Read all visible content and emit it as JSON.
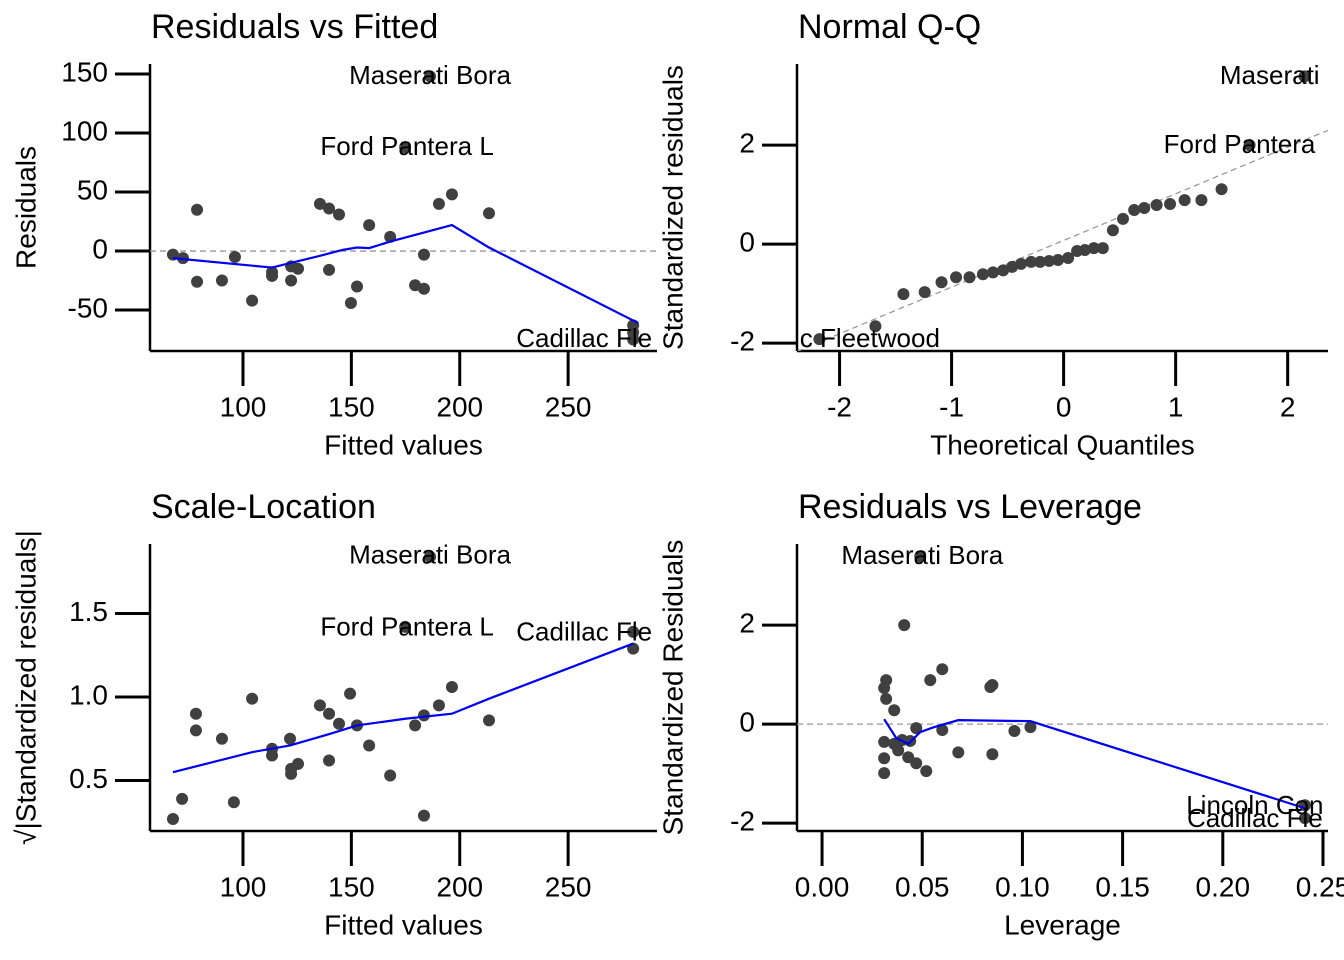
{
  "chart_data": [
    {
      "type": "scatter",
      "title": "Residuals vs Fitted",
      "xlabel": "Fitted values",
      "ylabel": "Residuals",
      "xlim": [
        57.1,
        291
      ],
      "ylim": [
        -84.7,
        158.5
      ],
      "xticks": [
        100,
        150,
        200,
        250
      ],
      "yticks": [
        -50,
        0,
        50,
        100,
        150
      ],
      "hline": 0,
      "point_color": "#404040",
      "smooth_color": "#0000ee",
      "points": {
        "x": [
          67.7,
          72.3,
          78.8,
          78.8,
          90.3,
          96.3,
          104.2,
          113.4,
          113.4,
          122.2,
          122.2,
          125.4,
          135.5,
          139.7,
          139.7,
          144.3,
          149.8,
          152.6,
          158.2,
          167.9,
          179.4,
          183.5,
          183.5,
          186.3,
          174.8,
          190.4,
          196.4,
          213.5,
          280,
          280,
          280
        ],
        "y": [
          -3,
          -6,
          35,
          -26,
          -25,
          -5,
          -42,
          -18,
          -21,
          -13,
          -25,
          -15,
          40,
          36,
          -16,
          31,
          -44,
          -30,
          22,
          12,
          -29,
          -32,
          -3,
          148,
          88,
          40,
          48,
          32,
          -63,
          -75,
          -69
        ]
      },
      "smooth": {
        "x": [
          67.7,
          113.4,
          135.5,
          146.1,
          152.6,
          158.2,
          167.9,
          196.4,
          213.5,
          282.3
        ],
        "y": [
          -6,
          -14,
          -4,
          1,
          3,
          2.5,
          8,
          22,
          3,
          -61
        ]
      },
      "annotations": [
        {
          "text": "Maserati Bora",
          "x": 186.3,
          "y": 147.5
        },
        {
          "text": "Ford Pantera L",
          "x": 175.7,
          "y": 87.3
        },
        {
          "text": "Cadillac Fle",
          "x": 257.4,
          "y": -75.4
        }
      ]
    },
    {
      "type": "scatter",
      "title": "Normal Q-Q",
      "xlabel": "Theoretical Quantiles",
      "ylabel": "Standardized residuals",
      "xlim": [
        -2.38,
        2.36
      ],
      "ylim": [
        -2.16,
        3.64
      ],
      "xticks": [
        -2,
        -1,
        0,
        1,
        2
      ],
      "yticks": [
        -2,
        0,
        2
      ],
      "ref_line": {
        "x": [
          -2.38,
          2.36
        ],
        "y": [
          -2.17,
          2.3
        ]
      },
      "point_color": "#404040",
      "points": {
        "x": [
          -2.18,
          -1.68,
          -1.43,
          -1.24,
          -1.09,
          -0.96,
          -0.84,
          -0.72,
          -0.63,
          -0.54,
          -0.46,
          -0.38,
          -0.29,
          -0.21,
          -0.13,
          -0.05,
          0.04,
          0.12,
          0.19,
          0.27,
          0.35,
          0.44,
          0.53,
          0.63,
          0.72,
          0.83,
          0.95,
          1.08,
          1.23,
          1.41,
          1.66,
          2.15
        ],
        "y": [
          -1.92,
          -1.66,
          -1.01,
          -0.97,
          -0.77,
          -0.67,
          -0.67,
          -0.61,
          -0.57,
          -0.53,
          -0.46,
          -0.4,
          -0.36,
          -0.36,
          -0.34,
          -0.32,
          -0.28,
          -0.14,
          -0.12,
          -0.08,
          -0.08,
          0.28,
          0.51,
          0.69,
          0.73,
          0.79,
          0.81,
          0.89,
          0.89,
          1.11,
          2.0,
          3.39
        ]
      },
      "annotations": [
        {
          "text": "Maserati",
          "x": 1.84,
          "y": 3.37
        },
        {
          "text": "Ford Pantera",
          "x": 1.57,
          "y": 1.98
        },
        {
          "text": "c Fleetwood",
          "x": -1.73,
          "y": -1.94
        }
      ]
    },
    {
      "type": "scatter",
      "title": "Scale-Location",
      "xlabel": "Fitted values",
      "ylabel": "√|Standardized residuals|",
      "xlim": [
        57.1,
        291
      ],
      "ylim": [
        0.198,
        1.916
      ],
      "xticks": [
        100,
        150,
        200,
        250
      ],
      "yticks": [
        0.5,
        {
          "value": 1,
          "label": "1.0"
        },
        1.5
      ],
      "point_color": "#404040",
      "smooth_color": "#0000ee",
      "points": {
        "x": [
          67.7,
          71.9,
          78.3,
          78.3,
          90.3,
          95.8,
          104.2,
          113.4,
          113.4,
          121.7,
          122.2,
          122.2,
          125.4,
          135.5,
          139.7,
          139.7,
          144.3,
          149.4,
          152.6,
          158.2,
          167.9,
          179.4,
          183.5,
          183.5,
          186.3,
          174.8,
          190.4,
          196.4,
          213.5,
          280,
          280
        ],
        "y": [
          0.27,
          0.39,
          0.9,
          0.8,
          0.75,
          0.37,
          0.99,
          0.69,
          0.65,
          0.75,
          0.57,
          0.54,
          0.6,
          0.95,
          0.9,
          0.62,
          0.84,
          1.02,
          0.83,
          0.71,
          0.53,
          0.83,
          0.89,
          0.29,
          1.84,
          1.42,
          0.95,
          1.06,
          0.86,
          1.39,
          1.29
        ]
      },
      "smooth": {
        "x": [
          67.7,
          104.2,
          121.7,
          140.2,
          152.6,
          174.8,
          196.4,
          213.5,
          280
        ],
        "y": [
          0.55,
          0.67,
          0.71,
          0.78,
          0.83,
          0.87,
          0.9,
          0.99,
          1.32
        ]
      },
      "annotations": [
        {
          "text": "Maserati Bora",
          "x": 186.3,
          "y": 1.84
        },
        {
          "text": "Ford Pantera L",
          "x": 175.7,
          "y": 1.41
        },
        {
          "text": "Cadillac Fle",
          "x": 257.4,
          "y": 1.38
        }
      ]
    },
    {
      "type": "scatter",
      "title": "Residuals vs Leverage",
      "xlabel": "Leverage",
      "ylabel": "Standardized Residuals",
      "xlim": [
        -0.0125,
        0.2525
      ],
      "ylim": [
        -2.16,
        3.64
      ],
      "xticks": [
        {
          "value": 0,
          "label": "0.00"
        },
        0.05,
        {
          "value": 0.1,
          "label": "0.10"
        },
        0.15,
        {
          "value": 0.2,
          "label": "0.20"
        },
        0.25
      ],
      "yticks": [
        -2,
        0,
        2
      ],
      "hline": 0,
      "point_color": "#404040",
      "smooth_color": "#0000ee",
      "points": {
        "x": [
          0.031,
          0.031,
          0.031,
          0.031,
          0.032,
          0.032,
          0.036,
          0.038,
          0.04,
          0.041,
          0.043,
          0.047,
          0.047,
          0.049,
          0.052,
          0.054,
          0.06,
          0.06,
          0.068,
          0.084,
          0.085,
          0.085,
          0.096,
          0.104,
          0.241,
          0.241,
          0.036,
          0.044
        ],
        "y": [
          -0.99,
          -0.69,
          -0.36,
          0.73,
          0.89,
          0.51,
          0.28,
          -0.53,
          -0.32,
          2.0,
          -0.67,
          -0.79,
          -0.08,
          3.39,
          -0.95,
          0.89,
          1.11,
          -0.12,
          -0.57,
          0.75,
          0.79,
          -0.61,
          -0.14,
          -0.06,
          -1.64,
          -1.9,
          -0.4,
          -0.34
        ]
      },
      "smooth": {
        "x": [
          0.031,
          0.037,
          0.043,
          0.049,
          0.056,
          0.068,
          0.104,
          0.241
        ],
        "y": [
          0.1,
          -0.28,
          -0.4,
          -0.16,
          -0.06,
          0.08,
          0.06,
          -1.7
        ]
      },
      "annotations": [
        {
          "text": "Maserati Bora",
          "x": 0.05,
          "y": 3.37
        },
        {
          "text": "Lincoln Con",
          "x": 0.216,
          "y": -1.68
        },
        {
          "text": "Cadillac Fle",
          "x": 0.216,
          "y": -1.94
        }
      ]
    }
  ]
}
